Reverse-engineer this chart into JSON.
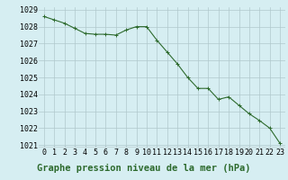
{
  "x": [
    0,
    1,
    2,
    3,
    4,
    5,
    6,
    7,
    8,
    9,
    10,
    11,
    12,
    13,
    14,
    15,
    16,
    17,
    18,
    19,
    20,
    21,
    22,
    23
  ],
  "y": [
    1028.6,
    1028.4,
    1028.2,
    1027.9,
    1027.6,
    1027.55,
    1027.55,
    1027.5,
    1027.8,
    1028.0,
    1028.0,
    1027.2,
    1026.5,
    1025.8,
    1025.0,
    1024.35,
    1024.35,
    1023.7,
    1023.85,
    1023.35,
    1022.85,
    1022.45,
    1022.0,
    1021.1
  ],
  "line_color": "#2d6a2d",
  "marker": "+",
  "marker_size": 3,
  "bg_color": "#d6eef2",
  "grid_color": "#b0c8cc",
  "xlabel": "Graphe pression niveau de la mer (hPa)",
  "xlabel_fontsize": 7.5,
  "tick_fontsize": 6.0,
  "ylim_min": 1021,
  "ylim_max": 1029,
  "yticks": [
    1021,
    1022,
    1023,
    1024,
    1025,
    1026,
    1027,
    1028,
    1029
  ],
  "xticks": [
    0,
    1,
    2,
    3,
    4,
    5,
    6,
    7,
    8,
    9,
    10,
    11,
    12,
    13,
    14,
    15,
    16,
    17,
    18,
    19,
    20,
    21,
    22,
    23
  ],
  "line_width": 0.8,
  "marker_edge_width": 0.7
}
